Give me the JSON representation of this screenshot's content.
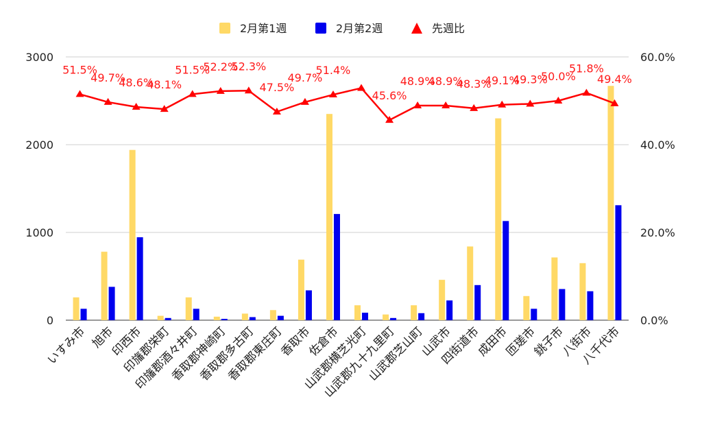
{
  "chart_data": {
    "type": "bar",
    "categories": [
      "いすみ市",
      "旭市",
      "印西市",
      "印旛郡栄町",
      "印旛郡酒々井町",
      "香取郡神崎町",
      "香取郡多古町",
      "香取郡東庄町",
      "香取市",
      "佐倉市",
      "山武郡横芝光町",
      "山武郡九十九里町",
      "山武郡芝山町",
      "山武市",
      "四街道市",
      "成田市",
      "匝瑳市",
      "銚子市",
      "八街市",
      "八千代市"
    ],
    "series": [
      {
        "name": "2月第1週",
        "type": "bar",
        "axis": "left",
        "color": "#ffd966",
        "values": [
          260,
          780,
          1940,
          50,
          260,
          40,
          75,
          115,
          690,
          2350,
          170,
          65,
          170,
          460,
          840,
          2300,
          275,
          715,
          650,
          2670
        ]
      },
      {
        "name": "2月第2週",
        "type": "bar",
        "axis": "left",
        "color": "#0000ee",
        "values": [
          130,
          380,
          945,
          25,
          130,
          15,
          35,
          50,
          340,
          1210,
          85,
          25,
          80,
          225,
          400,
          1130,
          130,
          355,
          330,
          1310
        ]
      },
      {
        "name": "先週比",
        "type": "line",
        "axis": "right",
        "color": "#ff0000",
        "marker": "triangle",
        "values": [
          51.5,
          49.7,
          48.6,
          48.1,
          51.5,
          52.2,
          52.3,
          47.5,
          49.7,
          51.4,
          52.9,
          45.6,
          48.9,
          48.9,
          48.3,
          49.1,
          49.3,
          50.0,
          51.8,
          49.4
        ],
        "labels": [
          "51.5%",
          "49.7%",
          "48.6%",
          "48.1%",
          "51.5%",
          "52.2%",
          "52.3%",
          "47.5%",
          "49.7%",
          "51.4%",
          "",
          "45.6%",
          "48.9%",
          "48.9%",
          "48.3%",
          "49.1%",
          "49.3%",
          "50.0%",
          "51.8%",
          "49.4%"
        ]
      }
    ],
    "y_left": {
      "min": 0,
      "max": 3000,
      "ticks": [
        0,
        1000,
        2000,
        3000
      ],
      "tick_labels": [
        "0",
        "1000",
        "2000",
        "3000"
      ]
    },
    "y_right": {
      "min": 0,
      "max": 60,
      "ticks": [
        0,
        20,
        40,
        60
      ],
      "tick_labels": [
        "0.0%",
        "20.0%",
        "40.0%",
        "60.0%"
      ]
    },
    "grid": true,
    "legend_position": "top"
  }
}
